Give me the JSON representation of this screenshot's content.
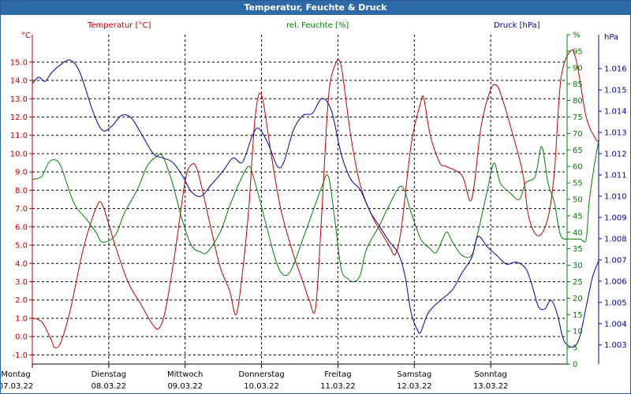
{
  "window": {
    "title": "Temperatur, Feuchte & Druck"
  },
  "colors": {
    "temperature": "#c00000",
    "humidity": "#008000",
    "pressure": "#0000a8",
    "titlebar": "#2e6aa8",
    "grid": "#000000"
  },
  "chart_data": {
    "type": "line",
    "title": "",
    "grid": true,
    "x_axis": {
      "range": [
        "07.03.22 00:00",
        "13.03.22 23:59"
      ],
      "ticks": [
        {
          "weekday": "Montag",
          "date": "07.03.22"
        },
        {
          "weekday": "Dienstag",
          "date": "08.03.22"
        },
        {
          "weekday": "Mittwoch",
          "date": "09.03.22"
        },
        {
          "weekday": "Donnerstag",
          "date": "10.03.22"
        },
        {
          "weekday": "Freitag",
          "date": "11.03.22"
        },
        {
          "weekday": "Samstag",
          "date": "12.03.22"
        },
        {
          "weekday": "Sonntag",
          "date": "13.03.22"
        }
      ]
    },
    "axes": {
      "temperature": {
        "unit_label": "°C",
        "ylim": [
          -1.5,
          16.5
        ],
        "ticks": [
          "-1.0",
          "0.0",
          "1.0",
          "2.0",
          "3.0",
          "4.0",
          "5.0",
          "6.0",
          "7.0",
          "8.0",
          "9.0",
          "10.0",
          "11.0",
          "12.0",
          "13.0",
          "14.0",
          "15.0"
        ]
      },
      "humidity": {
        "unit_label": "%",
        "ylim": [
          0,
          100
        ],
        "ticks": [
          "0",
          "5",
          "10",
          "15",
          "20",
          "25",
          "30",
          "35",
          "40",
          "45",
          "50",
          "55",
          "60",
          "65",
          "70",
          "75",
          "80",
          "85",
          "90",
          "95",
          "%"
        ]
      },
      "pressure": {
        "unit_label": "hPa",
        "ylim": [
          1002.1,
          1017.6
        ],
        "ticks": [
          "1.003",
          "1.004",
          "1.005",
          "1.006",
          "1.007",
          "1.008",
          "1.009",
          "1.010",
          "1.011",
          "1.012",
          "1.013",
          "1.014",
          "1.015",
          "1.016"
        ]
      }
    },
    "series": [
      {
        "name": "Temperatur [°C]",
        "axis": "temperature",
        "color": "#c00000",
        "points": [
          [
            "07.03 00:00",
            1.0
          ],
          [
            "07.03 03:00",
            0.8
          ],
          [
            "07.03 06:00",
            -0.2
          ],
          [
            "07.03 07:00",
            -0.6
          ],
          [
            "07.03 09:00",
            -0.3
          ],
          [
            "07.03 12:00",
            1.5
          ],
          [
            "07.03 16:00",
            4.8
          ],
          [
            "07.03 20:00",
            7.0
          ],
          [
            "07.03 22:00",
            7.2
          ],
          [
            "08.03 02:00",
            5.0
          ],
          [
            "08.03 06:00",
            3.0
          ],
          [
            "08.03 10:00",
            1.8
          ],
          [
            "08.03 14:00",
            0.6
          ],
          [
            "08.03 16:00",
            0.5
          ],
          [
            "08.03 18:00",
            1.6
          ],
          [
            "08.03 21:00",
            4.8
          ],
          [
            "09.03 00:00",
            8.5
          ],
          [
            "09.03 02:00",
            9.4
          ],
          [
            "09.03 04:00",
            9.0
          ],
          [
            "09.03 08:00",
            6.0
          ],
          [
            "09.03 11:00",
            3.8
          ],
          [
            "09.03 14:00",
            2.5
          ],
          [
            "09.03 16:00",
            1.2
          ],
          [
            "09.03 18:00",
            3.5
          ],
          [
            "09.03 20:00",
            7.0
          ],
          [
            "09.03 22:00",
            12.0
          ],
          [
            "10.03 00:00",
            13.2
          ],
          [
            "10.03 03:00",
            10.0
          ],
          [
            "10.03 06:00",
            7.0
          ],
          [
            "10.03 10:00",
            4.5
          ],
          [
            "10.03 13:00",
            3.0
          ],
          [
            "10.03 15:00",
            2.0
          ],
          [
            "10.03 17:00",
            1.6
          ],
          [
            "10.03 19:00",
            7.0
          ],
          [
            "10.03 21:00",
            13.0
          ],
          [
            "10.03 23:00",
            14.8
          ],
          [
            "11.03 01:00",
            14.8
          ],
          [
            "11.03 04:00",
            11.0
          ],
          [
            "11.03 07:00",
            8.3
          ],
          [
            "11.03 11:00",
            6.5
          ],
          [
            "11.03 16:00",
            5.0
          ],
          [
            "11.03 18:00",
            4.5
          ],
          [
            "11.03 20:00",
            6.0
          ],
          [
            "11.03 23:00",
            10.5
          ],
          [
            "12.03 02:00",
            12.8
          ],
          [
            "12.03 03:00",
            13.0
          ],
          [
            "12.03 05:00",
            11.0
          ],
          [
            "12.03 08:00",
            9.5
          ],
          [
            "12.03 10:00",
            9.3
          ],
          [
            "12.03 15:00",
            8.8
          ],
          [
            "12.03 18:00",
            7.5
          ],
          [
            "12.03 21:00",
            11.5
          ],
          [
            "13.03 00:00",
            13.5
          ],
          [
            "13.03 02:00",
            13.7
          ],
          [
            "13.03 04:00",
            12.8
          ],
          [
            "13.03 07:00",
            11.0
          ],
          [
            "13.03 10:00",
            9.0
          ],
          [
            "13.03 12:00",
            6.5
          ],
          [
            "13.03 15:00",
            5.5
          ],
          [
            "13.03 18:00",
            6.5
          ],
          [
            "13.03 20:00",
            9.0
          ],
          [
            "13.03 22:00",
            14.0
          ],
          [
            "14.03 01:00",
            15.6
          ],
          [
            "14.03 03:00",
            15.0
          ],
          [
            "14.03 06:00",
            12.0
          ],
          [
            "14.03 09:00",
            10.8
          ],
          [
            "14.03 10:00",
            10.7
          ]
        ]
      },
      {
        "name": "rel. Feuchte [%]",
        "axis": "humidity",
        "color": "#008000",
        "points": [
          [
            "07.03 00:00",
            56
          ],
          [
            "07.03 03:00",
            57
          ],
          [
            "07.03 05:00",
            61
          ],
          [
            "07.03 07:00",
            62
          ],
          [
            "07.03 09:00",
            60
          ],
          [
            "07.03 13:00",
            49
          ],
          [
            "07.03 17:00",
            44
          ],
          [
            "07.03 20:00",
            40
          ],
          [
            "07.03 22:00",
            37
          ],
          [
            "08.03 02:00",
            39
          ],
          [
            "08.03 05:00",
            46
          ],
          [
            "08.03 09:00",
            53
          ],
          [
            "08.03 12:00",
            60
          ],
          [
            "08.03 15:00",
            63
          ],
          [
            "08.03 17:00",
            63
          ],
          [
            "08.03 20:00",
            55
          ],
          [
            "08.03 23:00",
            44
          ],
          [
            "09.03 02:00",
            36
          ],
          [
            "09.03 05:00",
            34
          ],
          [
            "09.03 07:00",
            34
          ],
          [
            "09.03 11:00",
            40
          ],
          [
            "09.03 14:00",
            48
          ],
          [
            "09.03 17:00",
            55
          ],
          [
            "09.03 20:00",
            60
          ],
          [
            "09.03 22:00",
            55
          ],
          [
            "10.03 01:00",
            44
          ],
          [
            "10.03 04:00",
            33
          ],
          [
            "10.03 06:00",
            28
          ],
          [
            "10.03 08:00",
            27
          ],
          [
            "10.03 10:00",
            30
          ],
          [
            "10.03 13:00",
            38
          ],
          [
            "10.03 16:00",
            46
          ],
          [
            "10.03 19:00",
            54
          ],
          [
            "10.03 21:00",
            57
          ],
          [
            "10.03 23:00",
            44
          ],
          [
            "11.03 01:00",
            29
          ],
          [
            "11.03 03:00",
            26
          ],
          [
            "11.03 05:00",
            25
          ],
          [
            "11.03 07:00",
            27
          ],
          [
            "11.03 09:00",
            35
          ],
          [
            "11.03 13:00",
            42
          ],
          [
            "11.03 16:00",
            48
          ],
          [
            "11.03 20:00",
            54
          ],
          [
            "11.03 23:00",
            46
          ],
          [
            "12.03 02:00",
            38
          ],
          [
            "12.03 05:00",
            35
          ],
          [
            "12.03 07:00",
            34
          ],
          [
            "12.03 10:00",
            40
          ],
          [
            "12.03 12:00",
            37
          ],
          [
            "12.03 15:00",
            33
          ],
          [
            "12.03 18:00",
            33
          ],
          [
            "12.03 20:00",
            40
          ],
          [
            "12.03 23:00",
            53
          ],
          [
            "13.03 01:00",
            61
          ],
          [
            "13.03 03:00",
            55
          ],
          [
            "13.03 06:00",
            52
          ],
          [
            "13.03 09:00",
            50
          ],
          [
            "13.03 11:00",
            55
          ],
          [
            "13.03 14:00",
            57
          ],
          [
            "13.03 16:00",
            66
          ],
          [
            "13.03 18:00",
            55
          ],
          [
            "13.03 20:00",
            49
          ],
          [
            "13.03 22:00",
            39
          ],
          [
            "14.03 01:00",
            38
          ],
          [
            "14.03 04:00",
            38
          ],
          [
            "14.03 06:00",
            38
          ],
          [
            "14.03 07:00",
            50
          ],
          [
            "14.03 09:00",
            63
          ],
          [
            "14.03 10:00",
            68
          ]
        ]
      },
      {
        "name": "Druck [hPa]",
        "axis": "pressure",
        "color": "#0000a8",
        "points": [
          [
            "07.03 00:00",
            1015.3
          ],
          [
            "07.03 02:00",
            1015.6
          ],
          [
            "07.03 04:00",
            1015.4
          ],
          [
            "07.03 06:00",
            1015.8
          ],
          [
            "07.03 09:00",
            1016.2
          ],
          [
            "07.03 12:00",
            1016.4
          ],
          [
            "07.03 15:00",
            1015.8
          ],
          [
            "07.03 19:00",
            1014.0
          ],
          [
            "07.03 22:00",
            1013.1
          ],
          [
            "08.03 01:00",
            1013.3
          ],
          [
            "08.03 04:00",
            1013.8
          ],
          [
            "08.03 07:00",
            1013.7
          ],
          [
            "08.03 10:00",
            1013.0
          ],
          [
            "08.03 14:00",
            1012.0
          ],
          [
            "08.03 17:00",
            1011.8
          ],
          [
            "08.03 20:00",
            1011.6
          ],
          [
            "08.03 23:00",
            1011.0
          ],
          [
            "09.03 02:00",
            1010.2
          ],
          [
            "09.03 05:00",
            1010.0
          ],
          [
            "09.03 08:00",
            1010.5
          ],
          [
            "09.03 12:00",
            1011.2
          ],
          [
            "09.03 15:00",
            1011.8
          ],
          [
            "09.03 18:00",
            1011.6
          ],
          [
            "09.03 21:00",
            1012.8
          ],
          [
            "09.03 23:00",
            1013.2
          ],
          [
            "10.03 02:00",
            1012.5
          ],
          [
            "10.03 05:00",
            1011.4
          ],
          [
            "10.03 07:00",
            1011.6
          ],
          [
            "10.03 10:00",
            1013.1
          ],
          [
            "10.03 13:00",
            1013.8
          ],
          [
            "10.03 16:00",
            1013.9
          ],
          [
            "10.03 19:00",
            1014.6
          ],
          [
            "10.03 22:00",
            1014.0
          ],
          [
            "11.03 01:00",
            1012.0
          ],
          [
            "11.03 04:00",
            1010.8
          ],
          [
            "11.03 07:00",
            1010.3
          ],
          [
            "11.03 10:00",
            1009.3
          ],
          [
            "11.03 13:00",
            1008.6
          ],
          [
            "11.03 16:00",
            1007.9
          ],
          [
            "11.03 19:00",
            1007.3
          ],
          [
            "11.03 21:00",
            1006.3
          ],
          [
            "11.03 23:00",
            1004.5
          ],
          [
            "12.03 01:00",
            1003.7
          ],
          [
            "12.03 02:00",
            1003.6
          ],
          [
            "12.03 04:00",
            1004.4
          ],
          [
            "12.03 06:00",
            1004.8
          ],
          [
            "12.03 09:00",
            1005.2
          ],
          [
            "12.03 12:00",
            1005.6
          ],
          [
            "12.03 15:00",
            1006.4
          ],
          [
            "12.03 18:00",
            1007.1
          ],
          [
            "12.03 20:00",
            1008.1
          ],
          [
            "12.03 23:00",
            1007.6
          ],
          [
            "13.03 02:00",
            1007.2
          ],
          [
            "13.03 05:00",
            1006.8
          ],
          [
            "13.03 08:00",
            1006.9
          ],
          [
            "13.03 11:00",
            1006.6
          ],
          [
            "13.03 13:00",
            1005.8
          ],
          [
            "13.03 15:00",
            1004.8
          ],
          [
            "13.03 17:00",
            1004.7
          ],
          [
            "13.03 19:00",
            1005.1
          ],
          [
            "13.03 21:00",
            1004.4
          ],
          [
            "13.03 23:00",
            1003.2
          ],
          [
            "14.03 02:00",
            1002.9
          ],
          [
            "14.03 04:00",
            1003.4
          ],
          [
            "14.03 06:00",
            1004.8
          ],
          [
            "14.03 08:00",
            1006.2
          ],
          [
            "14.03 10:00",
            1007.0
          ]
        ]
      }
    ]
  }
}
